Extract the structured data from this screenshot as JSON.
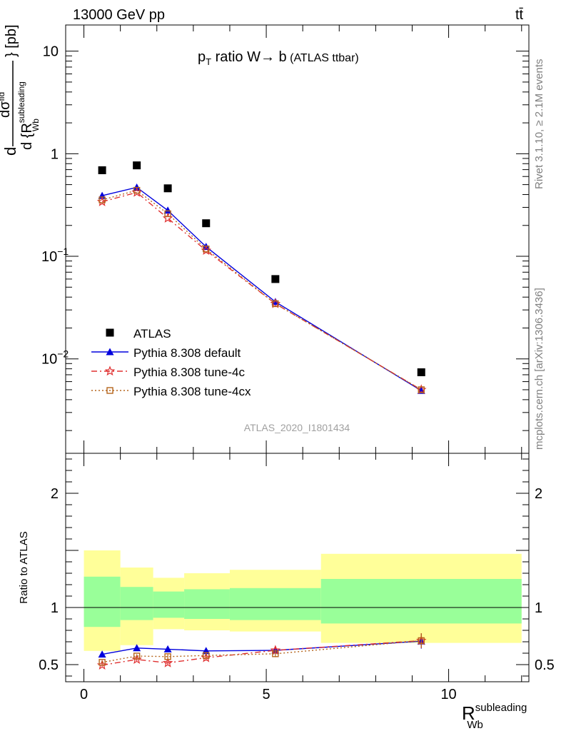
{
  "header": {
    "left": "13000 GeV pp",
    "right": "tt̄"
  },
  "side_labels": {
    "rivet": "Rivet 3.1.10, ≥ 2.1M events",
    "mcplots": "mcplots.cern.ch [arXiv:1306.3436]"
  },
  "chart_data": [
    {
      "type": "scatter",
      "panel": "main",
      "title_parts": {
        "p": "p",
        "sub": "T",
        "rest": " ratio W",
        "arrow": "→",
        "b": " b",
        "small": " (ATLAS ttbar)"
      },
      "ylabel_parts": {
        "d": "d",
        "num": "dσ",
        "num_sup": "fid",
        "den": "d {R",
        "den_sup": "subleading",
        "den_sub": "Wb",
        "unit": "} [pb]"
      },
      "watermark": "ATLAS_2020_I1801434",
      "yscale": "log",
      "ylim": [
        0.0012,
        18
      ],
      "xlim": [
        -0.5,
        12.2
      ],
      "yticks": [
        {
          "v": 10,
          "label": "10"
        },
        {
          "v": 1,
          "label": "1"
        },
        {
          "v": 0.1,
          "label": "10",
          "exp": "−1"
        },
        {
          "v": 0.01,
          "label": "10",
          "exp": "−2"
        }
      ],
      "legend_position": "lower-left",
      "series": [
        {
          "name": "ATLAS",
          "color": "#000000",
          "marker": "square",
          "x": [
            0.5,
            1.45,
            2.3,
            3.35,
            5.25,
            9.25
          ],
          "y": [
            0.69,
            0.77,
            0.46,
            0.21,
            0.06,
            0.0074
          ]
        },
        {
          "name": "Pythia 8.308 default",
          "color": "#0000dd",
          "marker": "triangle",
          "line": "solid",
          "x": [
            0.5,
            1.45,
            2.3,
            3.35,
            5.25,
            9.25
          ],
          "y": [
            0.39,
            0.47,
            0.28,
            0.124,
            0.036,
            0.0049
          ]
        },
        {
          "name": "Pythia 8.308 tune-4c",
          "color": "#e03030",
          "marker": "star",
          "line": "dashdot",
          "x": [
            0.5,
            1.45,
            2.3,
            3.35,
            5.25,
            9.25
          ],
          "y": [
            0.34,
            0.42,
            0.235,
            0.114,
            0.0345,
            0.005
          ]
        },
        {
          "name": "Pythia 8.308 tune-4cx",
          "color": "#b5651d",
          "marker": "square-open",
          "line": "dotted",
          "x": [
            0.5,
            1.45,
            2.3,
            3.35,
            5.25,
            9.25
          ],
          "y": [
            0.355,
            0.44,
            0.26,
            0.118,
            0.0345,
            0.005
          ]
        }
      ]
    },
    {
      "type": "scatter",
      "panel": "ratio",
      "ylabel": "Ratio to ATLAS",
      "xlabel_parts": {
        "R": "R",
        "sup": "subleading",
        "sub": "Wb"
      },
      "ylim": [
        0.35,
        2.35
      ],
      "xlim": [
        -0.5,
        12.2
      ],
      "yticks": [
        {
          "v": 0.5,
          "label": "0.5"
        },
        {
          "v": 1,
          "label": "1"
        },
        {
          "v": 2,
          "label": "2"
        }
      ],
      "xticks": [
        {
          "v": 0,
          "label": "0"
        },
        {
          "v": 5,
          "label": "5"
        },
        {
          "v": 10,
          "label": "10"
        }
      ],
      "bands": [
        {
          "x0": 0.0,
          "x1": 1.0,
          "inner": [
            0.83,
            1.27
          ],
          "outer": [
            0.62,
            1.5
          ]
        },
        {
          "x0": 1.0,
          "x1": 1.9,
          "inner": [
            0.89,
            1.18
          ],
          "outer": [
            0.67,
            1.35
          ]
        },
        {
          "x0": 1.9,
          "x1": 2.75,
          "inner": [
            0.91,
            1.14
          ],
          "outer": [
            0.81,
            1.26
          ]
        },
        {
          "x0": 2.75,
          "x1": 4.0,
          "inner": [
            0.9,
            1.16
          ],
          "outer": [
            0.8,
            1.3
          ]
        },
        {
          "x0": 4.0,
          "x1": 6.5,
          "inner": [
            0.89,
            1.17
          ],
          "outer": [
            0.79,
            1.33
          ]
        },
        {
          "x0": 6.5,
          "x1": 12.0,
          "inner": [
            0.86,
            1.25
          ],
          "outer": [
            0.69,
            1.47
          ]
        }
      ],
      "series": [
        {
          "name": "Pythia 8.308 default",
          "color": "#0000dd",
          "marker": "triangle",
          "line": "solid",
          "x": [
            0.5,
            1.45,
            2.3,
            3.35,
            5.25,
            9.25
          ],
          "y": [
            0.59,
            0.645,
            0.635,
            0.62,
            0.625,
            0.705
          ],
          "err": [
            0.015,
            0.015,
            0.02,
            0.025,
            0.03,
            0.065
          ]
        },
        {
          "name": "Pythia 8.308 tune-4c",
          "color": "#e03030",
          "marker": "star",
          "line": "dashdot",
          "x": [
            0.5,
            1.45,
            2.3,
            3.35,
            5.25,
            9.25
          ],
          "y": [
            0.495,
            0.545,
            0.515,
            0.56,
            0.625,
            0.71
          ],
          "err": [
            0.015,
            0.015,
            0.02,
            0.025,
            0.03,
            0.065
          ]
        },
        {
          "name": "Pythia 8.308 tune-4cx",
          "color": "#b5651d",
          "marker": "square-open",
          "line": "dotted",
          "x": [
            0.5,
            1.45,
            2.3,
            3.35,
            5.25,
            9.25
          ],
          "y": [
            0.52,
            0.575,
            0.57,
            0.58,
            0.595,
            0.71
          ],
          "err": [
            0.015,
            0.015,
            0.02,
            0.025,
            0.03,
            0.065
          ]
        }
      ]
    }
  ]
}
